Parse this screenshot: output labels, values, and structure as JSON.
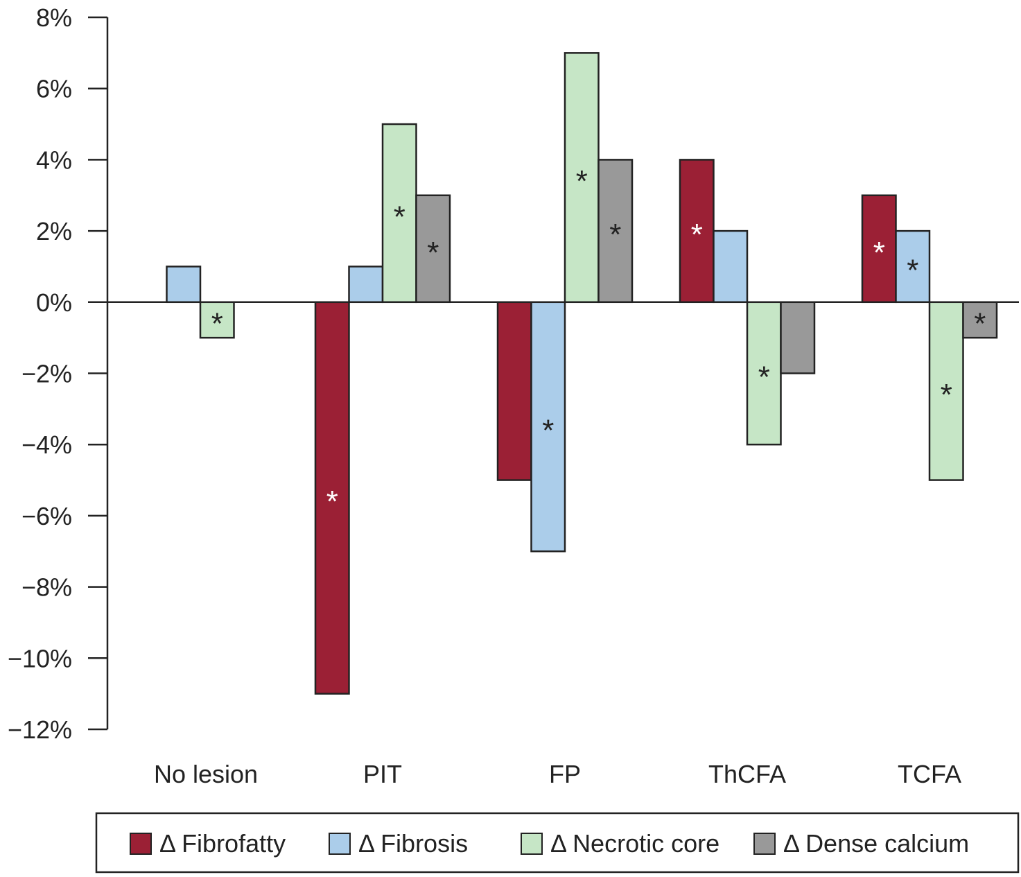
{
  "chart_data": {
    "type": "bar",
    "title": "",
    "xlabel": "",
    "ylabel": "",
    "ylim": [
      -12,
      8
    ],
    "yticks": [
      8,
      6,
      4,
      2,
      0,
      -2,
      -4,
      -6,
      -8,
      -10,
      -12
    ],
    "ytick_labels": [
      "8%",
      "6%",
      "4%",
      "2%",
      "0%",
      "−2%",
      "−4%",
      "−6%",
      "−8%",
      "−10%",
      "−12%"
    ],
    "grid": false,
    "legend_position": "bottom",
    "categories": [
      "No lesion",
      "PIT",
      "FP",
      "ThCFA",
      "TCFA"
    ],
    "series": [
      {
        "name": "Δ Fibrofatty",
        "color": "#9b2035",
        "values": [
          0,
          -11,
          -5,
          4,
          3
        ],
        "significant": [
          false,
          true,
          false,
          true,
          true
        ],
        "significant_alt": [
          false,
          true,
          true,
          true,
          true
        ],
        "asterisk_color": "#ffffff"
      },
      {
        "name": "Δ Fibrosis",
        "color": "#abcdea",
        "values": [
          1,
          1,
          -7,
          2,
          2
        ],
        "significant": [
          false,
          false,
          true,
          false,
          true
        ],
        "asterisk_color": "#222222"
      },
      {
        "name": "Δ Necrotic core",
        "color": "#c6e6c6",
        "values": [
          -1,
          5,
          7,
          -4,
          -5
        ],
        "significant": [
          true,
          true,
          true,
          true,
          true
        ],
        "asterisk_color": "#222222"
      },
      {
        "name": "Δ Dense calcium",
        "color": "#999999",
        "values": [
          0,
          3,
          4,
          -2,
          -1
        ],
        "significant": [
          false,
          true,
          true,
          false,
          true
        ],
        "asterisk_color": "#222222"
      }
    ],
    "significance_marker": "*"
  }
}
